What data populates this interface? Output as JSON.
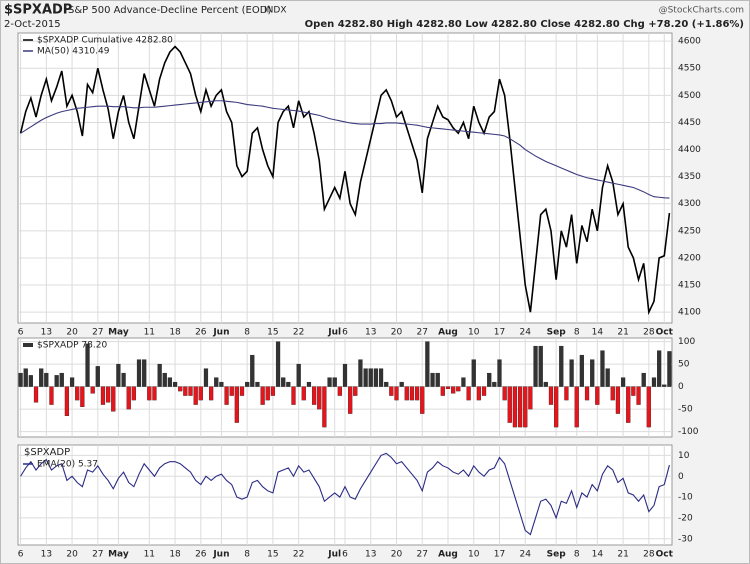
{
  "header": {
    "symbol": "$SPXADP",
    "name": "S&P 500 Advance-Decline Percent (EOD)",
    "exchange": "INDX",
    "date": "2-Oct-2015",
    "quote": "Open 4282.80  High 4282.80  Low 4282.80  Close 4282.80  Chg +78.20 (+1.86%)",
    "brand": "@StockCharts.com"
  },
  "chart_data": [
    {
      "type": "line",
      "ylim": [
        4080,
        4615
      ],
      "yticks": [
        4100,
        4150,
        4200,
        4250,
        4300,
        4350,
        4400,
        4450,
        4500,
        4550,
        4600
      ],
      "grid": true,
      "categories": [
        "6",
        null,
        null,
        null,
        null,
        "13",
        null,
        null,
        null,
        null,
        "20",
        null,
        null,
        null,
        null,
        "27",
        null,
        null,
        null,
        "May",
        null,
        null,
        null,
        null,
        null,
        "11",
        null,
        null,
        null,
        null,
        "18",
        null,
        null,
        null,
        null,
        "26",
        null,
        null,
        null,
        "Jun",
        null,
        null,
        null,
        null,
        "8",
        null,
        null,
        null,
        null,
        "15",
        null,
        null,
        null,
        null,
        "22",
        null,
        null,
        null,
        null,
        null,
        null,
        "Jul",
        null,
        "6",
        null,
        null,
        null,
        null,
        "13",
        null,
        null,
        null,
        null,
        "20",
        null,
        null,
        null,
        null,
        "27",
        null,
        null,
        null,
        null,
        "Aug",
        null,
        null,
        null,
        null,
        "10",
        null,
        null,
        null,
        null,
        "17",
        null,
        null,
        null,
        null,
        "24",
        null,
        null,
        null,
        null,
        null,
        "Sep",
        null,
        null,
        null,
        "8",
        null,
        null,
        null,
        "14",
        null,
        null,
        null,
        null,
        "21",
        null,
        null,
        null,
        null,
        "28",
        null,
        null,
        "Oct",
        null
      ],
      "series": [
        {
          "name": "$SPXADP Cumulative 4282.80",
          "color": "#000000",
          "values": [
            4430,
            4470,
            4495,
            4460,
            4500,
            4530,
            4490,
            4515,
            4545,
            4480,
            4500,
            4470,
            4425,
            4520,
            4505,
            4550,
            4510,
            4475,
            4420,
            4470,
            4500,
            4450,
            4420,
            4480,
            4540,
            4510,
            4480,
            4530,
            4560,
            4580,
            4590,
            4580,
            4560,
            4540,
            4500,
            4470,
            4510,
            4480,
            4500,
            4510,
            4470,
            4450,
            4370,
            4350,
            4360,
            4430,
            4440,
            4400,
            4370,
            4350,
            4450,
            4470,
            4480,
            4440,
            4490,
            4460,
            4470,
            4430,
            4380,
            4290,
            4310,
            4330,
            4310,
            4360,
            4300,
            4280,
            4340,
            4380,
            4420,
            4460,
            4500,
            4510,
            4490,
            4460,
            4470,
            4440,
            4410,
            4380,
            4320,
            4420,
            4450,
            4480,
            4460,
            4455,
            4440,
            4430,
            4450,
            4420,
            4480,
            4450,
            4430,
            4460,
            4470,
            4530,
            4500,
            4420,
            4330,
            4240,
            4150,
            4100,
            4190,
            4280,
            4290,
            4250,
            4160,
            4250,
            4220,
            4280,
            4190,
            4260,
            4230,
            4290,
            4250,
            4330,
            4370,
            4340,
            4280,
            4300,
            4220,
            4200,
            4160,
            4190,
            4100,
            4120,
            4200,
            4204,
            4282.8
          ]
        },
        {
          "name": "MA(50) 4310.49",
          "color": "#3b3b7e",
          "values": [
            4430,
            4436,
            4442,
            4448,
            4454,
            4459,
            4463,
            4467,
            4470,
            4472,
            4474,
            4476,
            4477,
            4478,
            4479,
            4480,
            4480,
            4480,
            4479,
            4479,
            4479,
            4478,
            4477,
            4477,
            4478,
            4478,
            4478,
            4479,
            4480,
            4481,
            4482,
            4483,
            4484,
            4485,
            4486,
            4487,
            4488,
            4489,
            4490,
            4490,
            4489,
            4488,
            4487,
            4485,
            4483,
            4482,
            4481,
            4480,
            4478,
            4476,
            4475,
            4474,
            4473,
            4472,
            4471,
            4469,
            4467,
            4465,
            4463,
            4460,
            4457,
            4455,
            4453,
            4451,
            4449,
            4448,
            4447,
            4447,
            4447,
            4448,
            4448,
            4449,
            4449,
            4449,
            4448,
            4447,
            4446,
            4445,
            4443,
            4441,
            4440,
            4439,
            4438,
            4437,
            4436,
            4435,
            4434,
            4433,
            4432,
            4431,
            4430,
            4429,
            4428,
            4427,
            4425,
            4420,
            4414,
            4408,
            4400,
            4394,
            4388,
            4383,
            4378,
            4374,
            4370,
            4366,
            4362,
            4358,
            4354,
            4351,
            4348,
            4346,
            4344,
            4342,
            4340,
            4338,
            4336,
            4334,
            4332,
            4330,
            4326,
            4322,
            4317,
            4313,
            4312,
            4311,
            4310.49
          ]
        }
      ]
    },
    {
      "type": "bar",
      "ylim": [
        -112,
        108
      ],
      "yticks": [
        -100,
        -50,
        0,
        50,
        100
      ],
      "grid": true,
      "color": "#333333",
      "negative_color": "#e8141b",
      "series": [
        {
          "name": "$SPXADP 78.20",
          "values": [
            30,
            40,
            25,
            -35,
            40,
            30,
            -40,
            25,
            30,
            -65,
            20,
            -30,
            -45,
            95,
            -15,
            45,
            -40,
            -35,
            -55,
            50,
            30,
            -50,
            -30,
            60,
            60,
            -30,
            -30,
            50,
            30,
            20,
            10,
            -10,
            -20,
            -20,
            -40,
            -30,
            40,
            -30,
            20,
            10,
            -40,
            -20,
            -80,
            -20,
            10,
            70,
            10,
            -40,
            -30,
            -20,
            100,
            20,
            10,
            -40,
            50,
            -30,
            10,
            -40,
            -50,
            -90,
            20,
            20,
            -20,
            50,
            -60,
            -20,
            60,
            40,
            40,
            40,
            40,
            10,
            -20,
            -30,
            10,
            -30,
            -30,
            -30,
            -60,
            100,
            30,
            30,
            -20,
            -5,
            -15,
            -10,
            20,
            -30,
            60,
            -30,
            -20,
            30,
            10,
            60,
            -30,
            -80,
            -90,
            -90,
            -90,
            -50,
            90,
            90,
            10,
            -40,
            -90,
            90,
            -30,
            60,
            -90,
            70,
            -30,
            60,
            -40,
            80,
            40,
            -30,
            -60,
            20,
            -80,
            -20,
            -40,
            30,
            -90,
            20,
            80,
            4,
            78.2
          ]
        }
      ]
    },
    {
      "type": "line",
      "label": "$SPXADP",
      "ylim": [
        -33,
        15
      ],
      "yticks": [
        -30,
        -20,
        -10,
        0,
        10
      ],
      "grid": true,
      "categories": [
        "6",
        null,
        null,
        null,
        null,
        "13",
        null,
        null,
        null,
        null,
        "20",
        null,
        null,
        null,
        null,
        "27",
        null,
        null,
        null,
        "May",
        null,
        null,
        null,
        null,
        null,
        "11",
        null,
        null,
        null,
        null,
        "18",
        null,
        null,
        null,
        null,
        "26",
        null,
        null,
        null,
        "Jun",
        null,
        null,
        null,
        null,
        "8",
        null,
        null,
        null,
        null,
        "15",
        null,
        null,
        null,
        null,
        "22",
        null,
        null,
        null,
        null,
        null,
        null,
        "Jul",
        null,
        "6",
        null,
        null,
        null,
        null,
        "13",
        null,
        null,
        null,
        null,
        "20",
        null,
        null,
        null,
        null,
        "27",
        null,
        null,
        null,
        null,
        "Aug",
        null,
        null,
        null,
        null,
        "10",
        null,
        null,
        null,
        null,
        "17",
        null,
        null,
        null,
        null,
        "24",
        null,
        null,
        null,
        null,
        null,
        "Sep",
        null,
        null,
        null,
        "8",
        null,
        null,
        null,
        "14",
        null,
        null,
        null,
        null,
        "21",
        null,
        null,
        null,
        null,
        "28",
        null,
        null,
        "Oct",
        null
      ],
      "series": [
        {
          "name": "EMA(20) 5.37",
          "color": "#2b2b85",
          "values": [
            0,
            4,
            7,
            3,
            6,
            8,
            3,
            5,
            6,
            -2,
            0,
            -3,
            -5,
            3,
            2,
            5,
            1,
            -2,
            -6,
            -1,
            2,
            -3,
            -5,
            1,
            6,
            3,
            0,
            4,
            6,
            7,
            7,
            6,
            4,
            2,
            -2,
            -4,
            0,
            -2,
            0,
            1,
            -2,
            -4,
            -10,
            -11,
            -10,
            -3,
            -2,
            -5,
            -7,
            -8,
            2,
            3,
            4,
            0,
            5,
            2,
            3,
            -1,
            -5,
            -12,
            -10,
            -8,
            -10,
            -5,
            -10,
            -11,
            -6,
            -2,
            2,
            6,
            10,
            11,
            9,
            6,
            7,
            4,
            1,
            -2,
            -7,
            2,
            4,
            7,
            5,
            4,
            2,
            1,
            3,
            0,
            5,
            2,
            0,
            3,
            4,
            9,
            6,
            -2,
            -10,
            -18,
            -26,
            -28,
            -20,
            -12,
            -11,
            -14,
            -20,
            -12,
            -13,
            -7,
            -15,
            -8,
            -10,
            -4,
            -7,
            1,
            5,
            3,
            -3,
            -1,
            -8,
            -9,
            -12,
            -9,
            -17,
            -14,
            -5,
            -4,
            5.37
          ]
        }
      ]
    }
  ]
}
